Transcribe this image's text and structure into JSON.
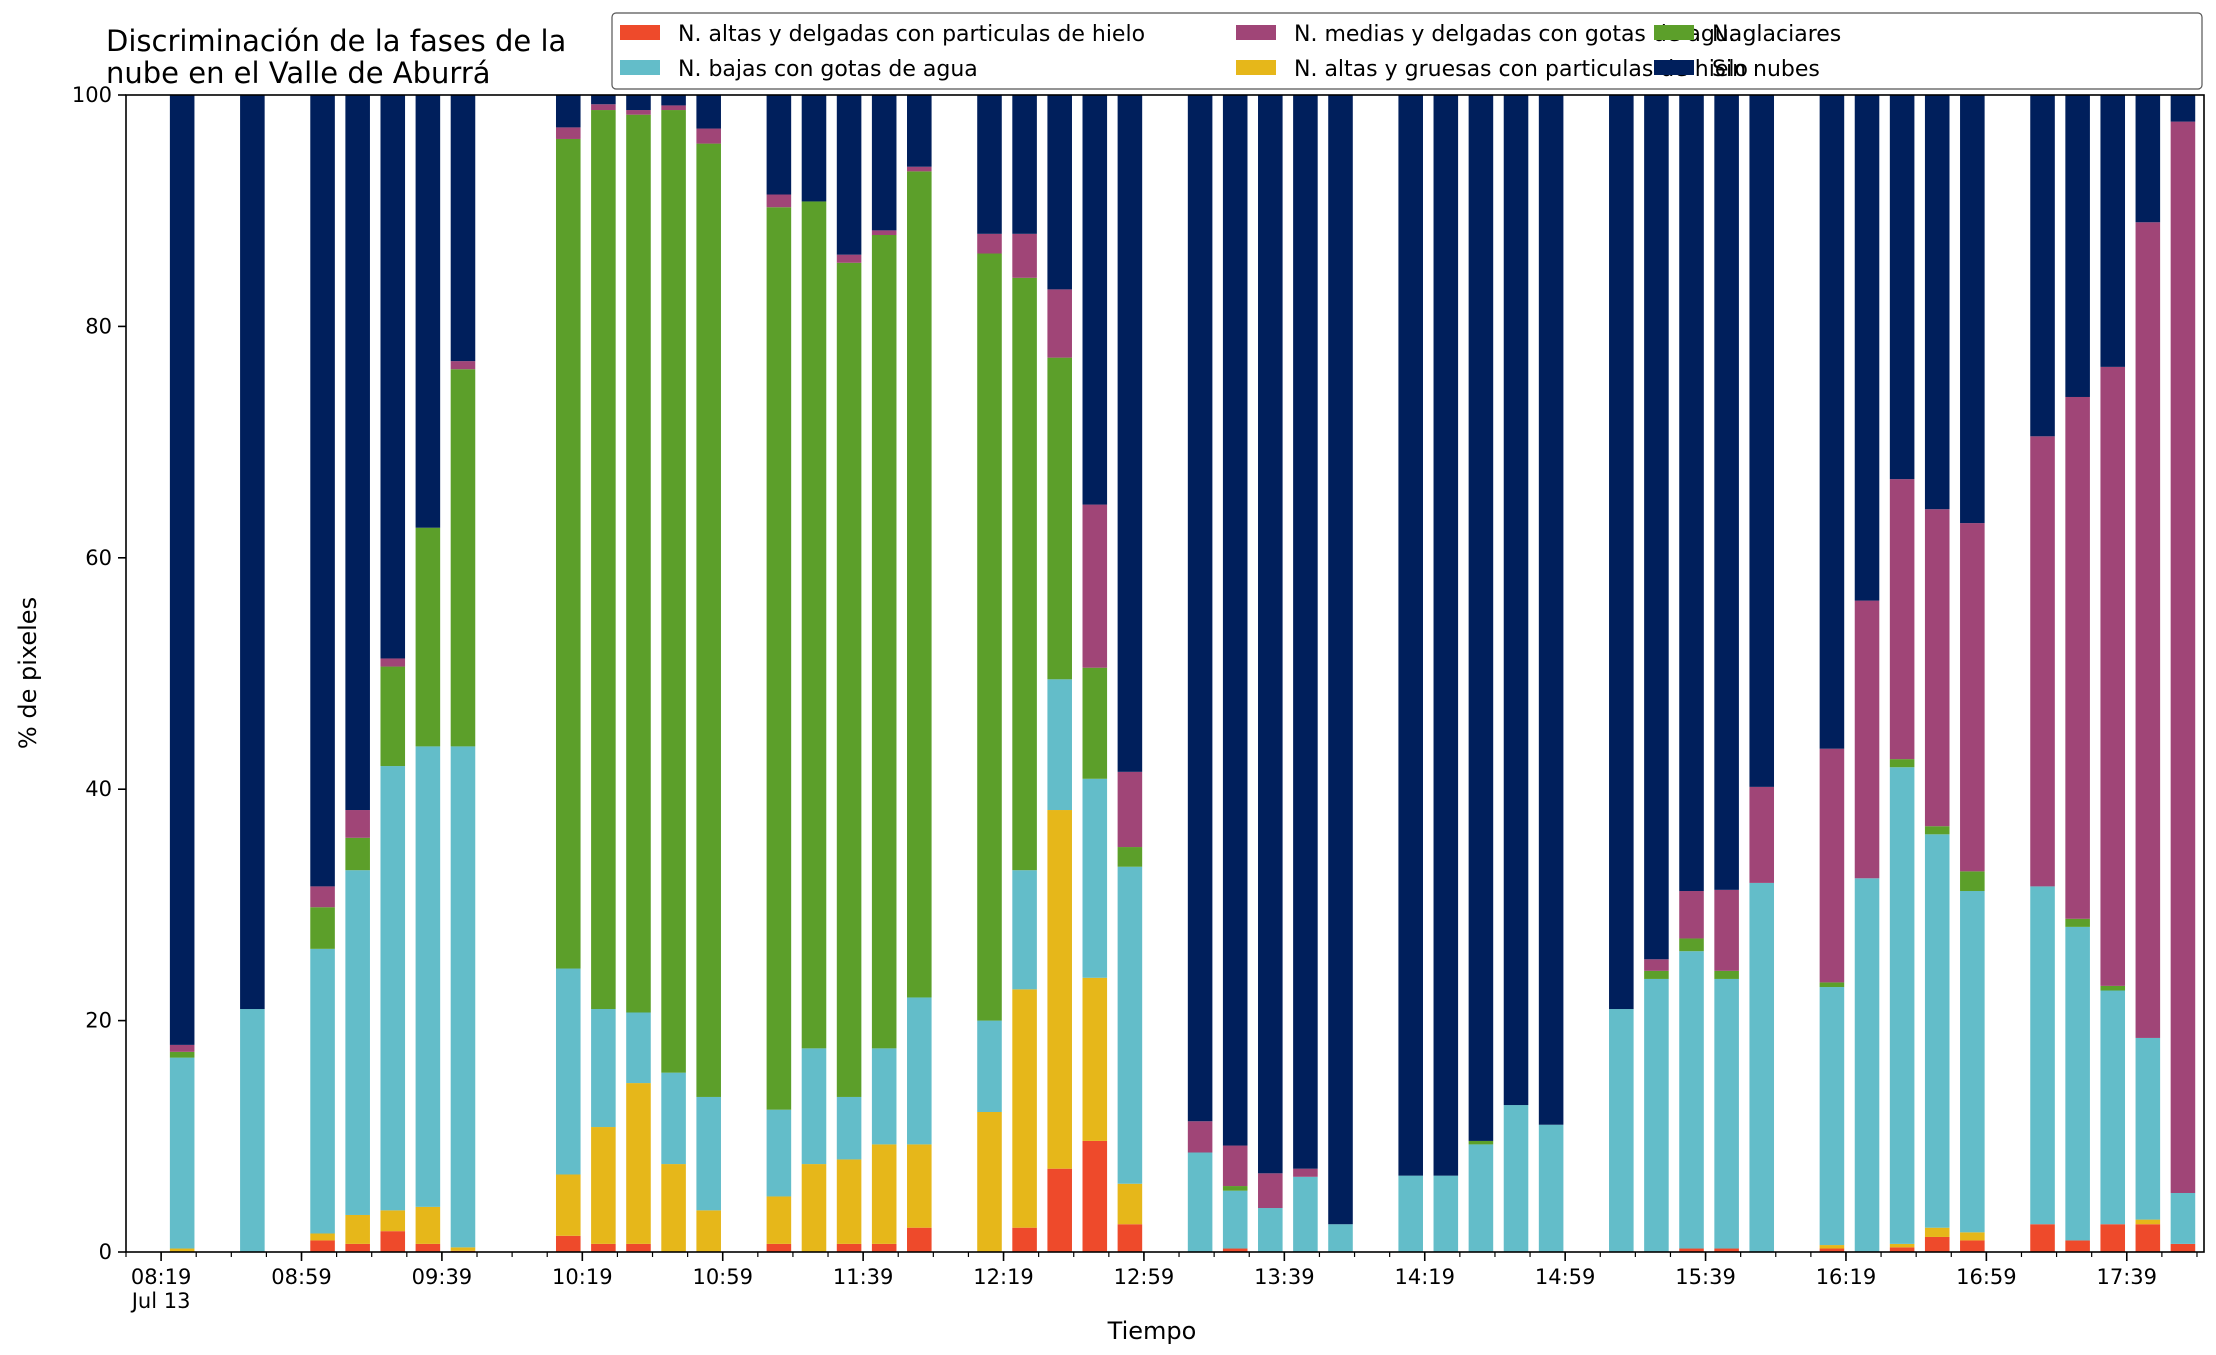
{
  "chart_data": {
    "type": "bar",
    "stacked": true,
    "title_lines": [
      "Discriminación de la fases de la",
      "nube en el Valle de Aburrá"
    ],
    "xlabel": "Tiempo",
    "ylabel": "% de pixeles",
    "ylim": [
      0,
      100
    ],
    "yticks": [
      0,
      20,
      40,
      60,
      80,
      100
    ],
    "x_axis": {
      "start_time": "08:09",
      "end_time": "18:01",
      "date_label": "Jul 13"
    },
    "xtick_labels": [
      "08:19",
      "08:59",
      "09:39",
      "10:19",
      "10:59",
      "11:39",
      "12:19",
      "12:59",
      "13:39",
      "14:19",
      "14:59",
      "15:39",
      "16:19",
      "16:59",
      "17:39"
    ],
    "minor_tick_interval_minutes": 10,
    "grid": false,
    "legend_position": "top-right",
    "legend_columns": 3,
    "series": [
      {
        "name": "N. altas y delgadas con particulas de hielo",
        "color": "#ee4a2b"
      },
      {
        "name": "N. altas y gruesas con particulas de hielo",
        "color": "#e6b71a"
      },
      {
        "name": "N. bajas con gotas de agua",
        "color": "#63bdc9"
      },
      {
        "name": "N. glaciares",
        "color": "#5c9f2a"
      },
      {
        "name": "N. medias y delgadas con gotas de agua",
        "color": "#a04577"
      },
      {
        "name": "Sin nubes",
        "color": "#001f5c"
      }
    ],
    "legend_order": [
      0,
      2,
      4,
      1,
      3,
      5
    ],
    "bars": [
      {
        "time": "08:25",
        "values": [
          0,
          0.3,
          16.5,
          0.5,
          0.6,
          82.1
        ]
      },
      {
        "time": "08:45",
        "values": [
          0,
          0,
          21.0,
          0,
          0,
          79.0
        ]
      },
      {
        "time": "09:05",
        "values": [
          1.0,
          0.6,
          24.6,
          3.6,
          1.8,
          68.4
        ]
      },
      {
        "time": "09:15",
        "values": [
          0.7,
          2.5,
          29.8,
          2.8,
          2.4,
          61.8
        ]
      },
      {
        "time": "09:25",
        "values": [
          1.8,
          1.8,
          38.4,
          8.6,
          0.7,
          48.7
        ]
      },
      {
        "time": "09:35",
        "values": [
          0.7,
          3.2,
          39.8,
          18.9,
          0,
          37.4
        ]
      },
      {
        "time": "09:45",
        "values": [
          0.1,
          0.3,
          43.3,
          32.6,
          0.7,
          23.0
        ]
      },
      {
        "time": "10:15",
        "values": [
          1.4,
          5.3,
          17.8,
          71.7,
          1.0,
          2.8
        ]
      },
      {
        "time": "10:25",
        "values": [
          0.7,
          10.1,
          10.2,
          77.7,
          0.5,
          0.8
        ]
      },
      {
        "time": "10:35",
        "values": [
          0.7,
          13.9,
          6.1,
          77.6,
          0.4,
          1.3
        ]
      },
      {
        "time": "10:45",
        "values": [
          0,
          7.6,
          7.9,
          83.2,
          0.4,
          0.9
        ]
      },
      {
        "time": "10:55",
        "values": [
          0,
          3.6,
          9.8,
          82.4,
          1.3,
          2.9
        ]
      },
      {
        "time": "11:15",
        "values": [
          0.7,
          4.1,
          7.5,
          78.0,
          1.1,
          8.6
        ]
      },
      {
        "time": "11:25",
        "values": [
          0,
          7.6,
          10.0,
          73.2,
          0,
          9.2
        ]
      },
      {
        "time": "11:35",
        "values": [
          0.7,
          7.3,
          5.4,
          72.1,
          0.7,
          13.8
        ]
      },
      {
        "time": "11:45",
        "values": [
          0.7,
          8.6,
          8.3,
          70.3,
          0.4,
          11.7
        ]
      },
      {
        "time": "11:55",
        "values": [
          2.1,
          7.2,
          12.7,
          71.4,
          0.4,
          6.2
        ]
      },
      {
        "time": "12:15",
        "values": [
          0,
          12.1,
          7.9,
          66.3,
          1.7,
          12.0
        ]
      },
      {
        "time": "12:25",
        "values": [
          2.1,
          20.6,
          10.3,
          51.2,
          3.8,
          12.0
        ]
      },
      {
        "time": "12:35",
        "values": [
          7.2,
          31.0,
          11.3,
          27.8,
          5.9,
          16.8
        ]
      },
      {
        "time": "12:45",
        "values": [
          9.6,
          14.1,
          17.2,
          9.6,
          14.1,
          35.4
        ]
      },
      {
        "time": "12:55",
        "values": [
          2.4,
          3.5,
          27.4,
          1.7,
          6.5,
          58.5
        ]
      },
      {
        "time": "13:15",
        "values": [
          0,
          0,
          8.6,
          0,
          2.7,
          88.7
        ]
      },
      {
        "time": "13:25",
        "values": [
          0.3,
          0,
          5.0,
          0.4,
          3.5,
          90.8
        ]
      },
      {
        "time": "13:35",
        "values": [
          0,
          0,
          3.8,
          0,
          3.0,
          93.2
        ]
      },
      {
        "time": "13:45",
        "values": [
          0,
          0,
          6.5,
          0,
          0.7,
          92.8
        ]
      },
      {
        "time": "13:55",
        "values": [
          0,
          0,
          2.4,
          0,
          0,
          97.6
        ]
      },
      {
        "time": "14:15",
        "values": [
          0,
          0,
          6.6,
          0,
          0,
          93.4
        ]
      },
      {
        "time": "14:25",
        "values": [
          0,
          0,
          6.6,
          0,
          0,
          93.4
        ]
      },
      {
        "time": "14:35",
        "values": [
          0,
          0,
          9.3,
          0.3,
          0,
          90.4
        ]
      },
      {
        "time": "14:45",
        "values": [
          0,
          0,
          12.7,
          0,
          0,
          87.3
        ]
      },
      {
        "time": "14:55",
        "values": [
          0,
          0,
          11.0,
          0,
          0,
          89.0
        ]
      },
      {
        "time": "15:15",
        "values": [
          0,
          0,
          21.0,
          0,
          0,
          79.0
        ]
      },
      {
        "time": "15:25",
        "values": [
          0,
          0,
          23.6,
          0.7,
          1.0,
          74.7
        ]
      },
      {
        "time": "15:35",
        "values": [
          0.3,
          0,
          25.7,
          1.1,
          4.1,
          68.8
        ]
      },
      {
        "time": "15:45",
        "values": [
          0.3,
          0,
          23.3,
          0.7,
          7.0,
          68.7
        ]
      },
      {
        "time": "15:55",
        "values": [
          0,
          0,
          31.9,
          0,
          8.3,
          59.8
        ]
      },
      {
        "time": "16:15",
        "values": [
          0.3,
          0.3,
          22.3,
          0.4,
          20.2,
          56.5
        ]
      },
      {
        "time": "16:25",
        "values": [
          0,
          0,
          32.3,
          0,
          24.0,
          43.7
        ]
      },
      {
        "time": "16:35",
        "values": [
          0.4,
          0.3,
          41.2,
          0.7,
          24.2,
          33.2
        ]
      },
      {
        "time": "16:45",
        "values": [
          1.3,
          0.8,
          34.0,
          0.7,
          27.4,
          35.8
        ]
      },
      {
        "time": "16:55",
        "values": [
          1.0,
          0.7,
          29.5,
          1.7,
          30.1,
          37.0
        ]
      },
      {
        "time": "17:15",
        "values": [
          2.4,
          0,
          29.2,
          0,
          38.9,
          29.5
        ]
      },
      {
        "time": "17:25",
        "values": [
          1.0,
          0,
          27.1,
          0.7,
          45.1,
          26.1
        ]
      },
      {
        "time": "17:35",
        "values": [
          2.4,
          0,
          20.2,
          0.4,
          53.5,
          23.5
        ]
      },
      {
        "time": "17:45",
        "values": [
          2.4,
          0.4,
          15.7,
          0,
          70.5,
          11.0
        ]
      },
      {
        "time": "17:55",
        "values": [
          0.7,
          0,
          4.4,
          0,
          92.6,
          2.3
        ]
      }
    ]
  }
}
